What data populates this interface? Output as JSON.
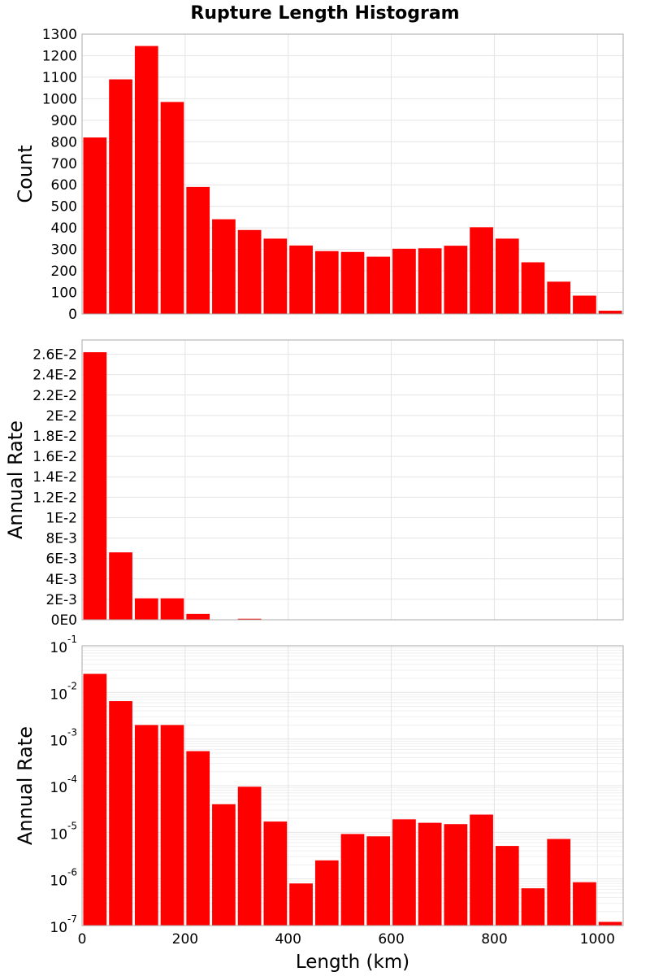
{
  "colors": {
    "bar": "#ff0000",
    "grid": "#e4e4e4",
    "frame": "#a9a9a9"
  },
  "chart_data": {
    "type": "bar",
    "title": "Rupture Length Histogram",
    "xlabel": "Length (km)",
    "bin_width": 50,
    "bin_centers": [
      25,
      75,
      125,
      175,
      225,
      275,
      325,
      375,
      425,
      475,
      525,
      575,
      625,
      675,
      725,
      775,
      825,
      875,
      925,
      975,
      1025
    ],
    "xlim": [
      0,
      1050
    ],
    "xticks": [
      0,
      200,
      400,
      600,
      800,
      1000
    ],
    "panels": [
      {
        "id": "count",
        "ylabel": "Count",
        "scale": "linear",
        "ylim": [
          0,
          1300
        ],
        "yticks": [
          0,
          100,
          200,
          300,
          400,
          500,
          600,
          700,
          800,
          900,
          1000,
          1100,
          1200,
          1300
        ],
        "ytick_labels": [
          "0",
          "100",
          "200",
          "300",
          "400",
          "500",
          "600",
          "700",
          "800",
          "900",
          "1000",
          "1100",
          "1200",
          "1300"
        ],
        "values": [
          820,
          1090,
          1245,
          985,
          590,
          440,
          390,
          350,
          318,
          292,
          288,
          266,
          303,
          305,
          317,
          403,
          350,
          240,
          150,
          85,
          15
        ]
      },
      {
        "id": "rate-linear",
        "ylabel": "Annual Rate",
        "scale": "linear",
        "ylim": [
          0,
          0.0274
        ],
        "yticks": [
          0,
          0.002,
          0.004,
          0.006,
          0.008,
          0.01,
          0.012,
          0.014,
          0.016,
          0.018,
          0.02,
          0.022,
          0.024,
          0.026
        ],
        "ytick_labels": [
          "0E0",
          "2E-3",
          "4E-3",
          "6E-3",
          "8E-3",
          "1E-2",
          "1.2E-2",
          "1.4E-2",
          "1.6E-2",
          "1.8E-2",
          "2E-2",
          "2.2E-2",
          "2.4E-2",
          "2.6E-2"
        ],
        "values": [
          0.0262,
          0.0066,
          0.0021,
          0.0021,
          0.00057,
          4e-05,
          0.0001,
          1.8e-05,
          8e-07,
          2.5e-06,
          9e-06,
          8e-06,
          2e-05,
          1.6e-05,
          1.5e-05,
          2.5e-05,
          5e-06,
          6e-07,
          7e-06,
          8e-07,
          1.3e-07
        ]
      },
      {
        "id": "rate-log",
        "ylabel": "Annual Rate",
        "scale": "log",
        "ylim": [
          1e-07,
          0.1
        ],
        "yticks": [
          1e-07,
          1e-06,
          1e-05,
          0.0001,
          0.001,
          0.01,
          0.1
        ],
        "ytick_labels": [
          {
            "base": "10",
            "exp": "-7"
          },
          {
            "base": "10",
            "exp": "-6"
          },
          {
            "base": "10",
            "exp": "-5"
          },
          {
            "base": "10",
            "exp": "-4"
          },
          {
            "base": "10",
            "exp": "-3"
          },
          {
            "base": "10",
            "exp": "-2"
          },
          {
            "base": "10",
            "exp": "-1"
          }
        ],
        "values": [
          0.025,
          0.0065,
          0.002,
          0.002,
          0.00055,
          4e-05,
          9.5e-05,
          1.7e-05,
          8e-07,
          2.5e-06,
          9.2e-06,
          8.2e-06,
          1.9e-05,
          1.6e-05,
          1.5e-05,
          2.4e-05,
          5.1e-06,
          6.3e-07,
          7.2e-06,
          8.5e-07,
          1.2e-07
        ]
      }
    ]
  }
}
